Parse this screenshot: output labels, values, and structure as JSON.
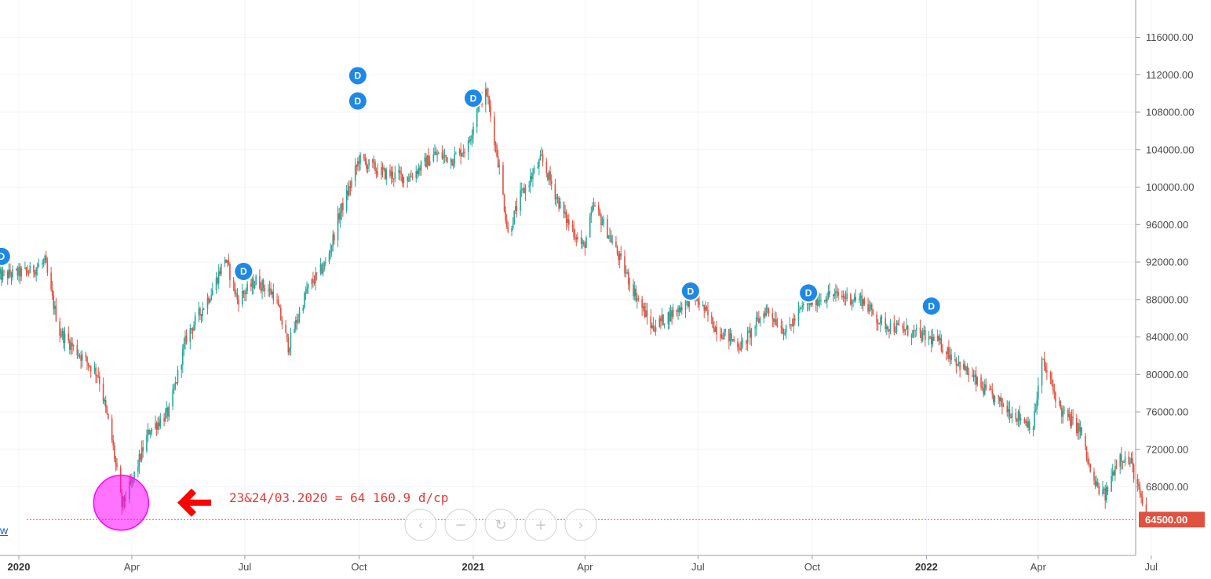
{
  "chart_data": {
    "type": "candlestick",
    "title": "",
    "xlabel": "",
    "ylabel": "",
    "ylim": [
      62000,
      120000
    ],
    "y_ticks": [
      116000,
      112000,
      108000,
      104000,
      100000,
      96000,
      92000,
      88000,
      84000,
      80000,
      76000,
      72000,
      68000
    ],
    "y_tick_labels": [
      "116000.00",
      "112000.00",
      "108000.00",
      "104000.00",
      "100000.00",
      "96000.00",
      "92000.00",
      "88000.00",
      "84000.00",
      "80000.00",
      "76000.00",
      "72000.00",
      "68000.00"
    ],
    "x_ticks": [
      {
        "label": "2020",
        "date": "2020-01-01",
        "bold": true
      },
      {
        "label": "Apr",
        "date": "2020-04-01",
        "bold": false
      },
      {
        "label": "Jul",
        "date": "2020-07-01",
        "bold": false
      },
      {
        "label": "Oct",
        "date": "2020-10-01",
        "bold": false
      },
      {
        "label": "2021",
        "date": "2021-01-01",
        "bold": true
      },
      {
        "label": "Apr",
        "date": "2021-04-01",
        "bold": false
      },
      {
        "label": "Jul",
        "date": "2021-07-01",
        "bold": false
      },
      {
        "label": "Oct",
        "date": "2021-10-01",
        "bold": false
      },
      {
        "label": "2022",
        "date": "2022-01-01",
        "bold": true
      },
      {
        "label": "Apr",
        "date": "2022-04-01",
        "bold": false
      },
      {
        "label": "Jul",
        "date": "2022-07-01",
        "bold": false
      }
    ],
    "price_path": [
      [
        "2019-12-15",
        90500
      ],
      [
        "2020-01-10",
        91000
      ],
      [
        "2020-01-22",
        92000
      ],
      [
        "2020-01-28",
        88000
      ],
      [
        "2020-02-03",
        84500
      ],
      [
        "2020-02-20",
        82000
      ],
      [
        "2020-03-05",
        80000
      ],
      [
        "2020-03-16",
        73000
      ],
      [
        "2020-03-24",
        66000
      ],
      [
        "2020-04-01",
        68500
      ],
      [
        "2020-04-15",
        74000
      ],
      [
        "2020-05-01",
        76000
      ],
      [
        "2020-05-15",
        84000
      ],
      [
        "2020-06-05",
        89000
      ],
      [
        "2020-06-15",
        92500
      ],
      [
        "2020-06-25",
        88000
      ],
      [
        "2020-07-10",
        90000
      ],
      [
        "2020-07-25",
        88500
      ],
      [
        "2020-08-05",
        83000
      ],
      [
        "2020-08-20",
        89000
      ],
      [
        "2020-09-05",
        92000
      ],
      [
        "2020-09-15",
        97000
      ],
      [
        "2020-09-25",
        100500
      ],
      [
        "2020-10-01",
        103000
      ],
      [
        "2020-10-20",
        101500
      ],
      [
        "2020-11-10",
        101000
      ],
      [
        "2020-12-01",
        103500
      ],
      [
        "2020-12-15",
        103000
      ],
      [
        "2020-12-28",
        104500
      ],
      [
        "2021-01-05",
        109000
      ],
      [
        "2021-01-12",
        110000
      ],
      [
        "2021-01-22",
        102000
      ],
      [
        "2021-01-29",
        95000
      ],
      [
        "2021-02-08",
        99000
      ],
      [
        "2021-02-25",
        103000
      ],
      [
        "2021-03-15",
        97000
      ],
      [
        "2021-03-31",
        93500
      ],
      [
        "2021-04-08",
        98000
      ],
      [
        "2021-04-20",
        95000
      ],
      [
        "2021-05-10",
        89000
      ],
      [
        "2021-05-25",
        85000
      ],
      [
        "2021-06-15",
        87000
      ],
      [
        "2021-06-28",
        88500
      ],
      [
        "2021-07-15",
        85000
      ],
      [
        "2021-08-05",
        83000
      ],
      [
        "2021-08-25",
        87000
      ],
      [
        "2021-09-10",
        84500
      ],
      [
        "2021-09-25",
        87500
      ],
      [
        "2021-10-15",
        88500
      ],
      [
        "2021-11-10",
        88000
      ],
      [
        "2021-11-25",
        85500
      ],
      [
        "2021-12-20",
        84500
      ],
      [
        "2022-01-10",
        83500
      ],
      [
        "2022-01-25",
        81500
      ],
      [
        "2022-02-15",
        78500
      ],
      [
        "2022-03-10",
        76000
      ],
      [
        "2022-03-28",
        74500
      ],
      [
        "2022-04-04",
        81500
      ],
      [
        "2022-04-20",
        76000
      ],
      [
        "2022-05-05",
        74000
      ],
      [
        "2022-05-15",
        68500
      ],
      [
        "2022-05-25",
        67000
      ],
      [
        "2022-06-05",
        71500
      ],
      [
        "2022-06-15",
        70500
      ],
      [
        "2022-06-22",
        67000
      ],
      [
        "2022-06-27",
        64500
      ]
    ],
    "dividend_markers": [
      {
        "date": "2019-12-18",
        "price": 92600,
        "label": "D"
      },
      {
        "date": "2020-06-30",
        "price": 91000,
        "label": "D"
      },
      {
        "date": "2020-09-30",
        "price": 109200,
        "label": "D"
      },
      {
        "date": "2020-09-30",
        "price": 111900,
        "label": "D"
      },
      {
        "date": "2021-01-01",
        "price": 109500,
        "label": "D"
      },
      {
        "date": "2021-06-25",
        "price": 88900,
        "label": "D"
      },
      {
        "date": "2021-09-28",
        "price": 88700,
        "label": "D"
      },
      {
        "date": "2022-01-05",
        "price": 87300,
        "label": "D"
      }
    ],
    "last_price": {
      "value": 64500,
      "label": "64500.00",
      "color": "#e05140"
    },
    "low_highlight": {
      "date": "2020-03-24",
      "price": 66300
    },
    "annotation": {
      "text": "23&24/03.2020 = 64 160.9 đ/cp",
      "color": "#e53935"
    },
    "colors": {
      "up": "#26a69a",
      "down": "#e05140",
      "grid": "#f0f3fa",
      "marker": "#1e88e5",
      "highlight": "#ff00ff"
    }
  },
  "nav_buttons": [
    {
      "name": "scroll-left-button",
      "glyph": "‹"
    },
    {
      "name": "zoom-out-button",
      "glyph": "−"
    },
    {
      "name": "reset-button",
      "glyph": "↻"
    },
    {
      "name": "zoom-in-button",
      "glyph": "+"
    },
    {
      "name": "scroll-right-button",
      "glyph": "›"
    }
  ],
  "left_link": "w"
}
